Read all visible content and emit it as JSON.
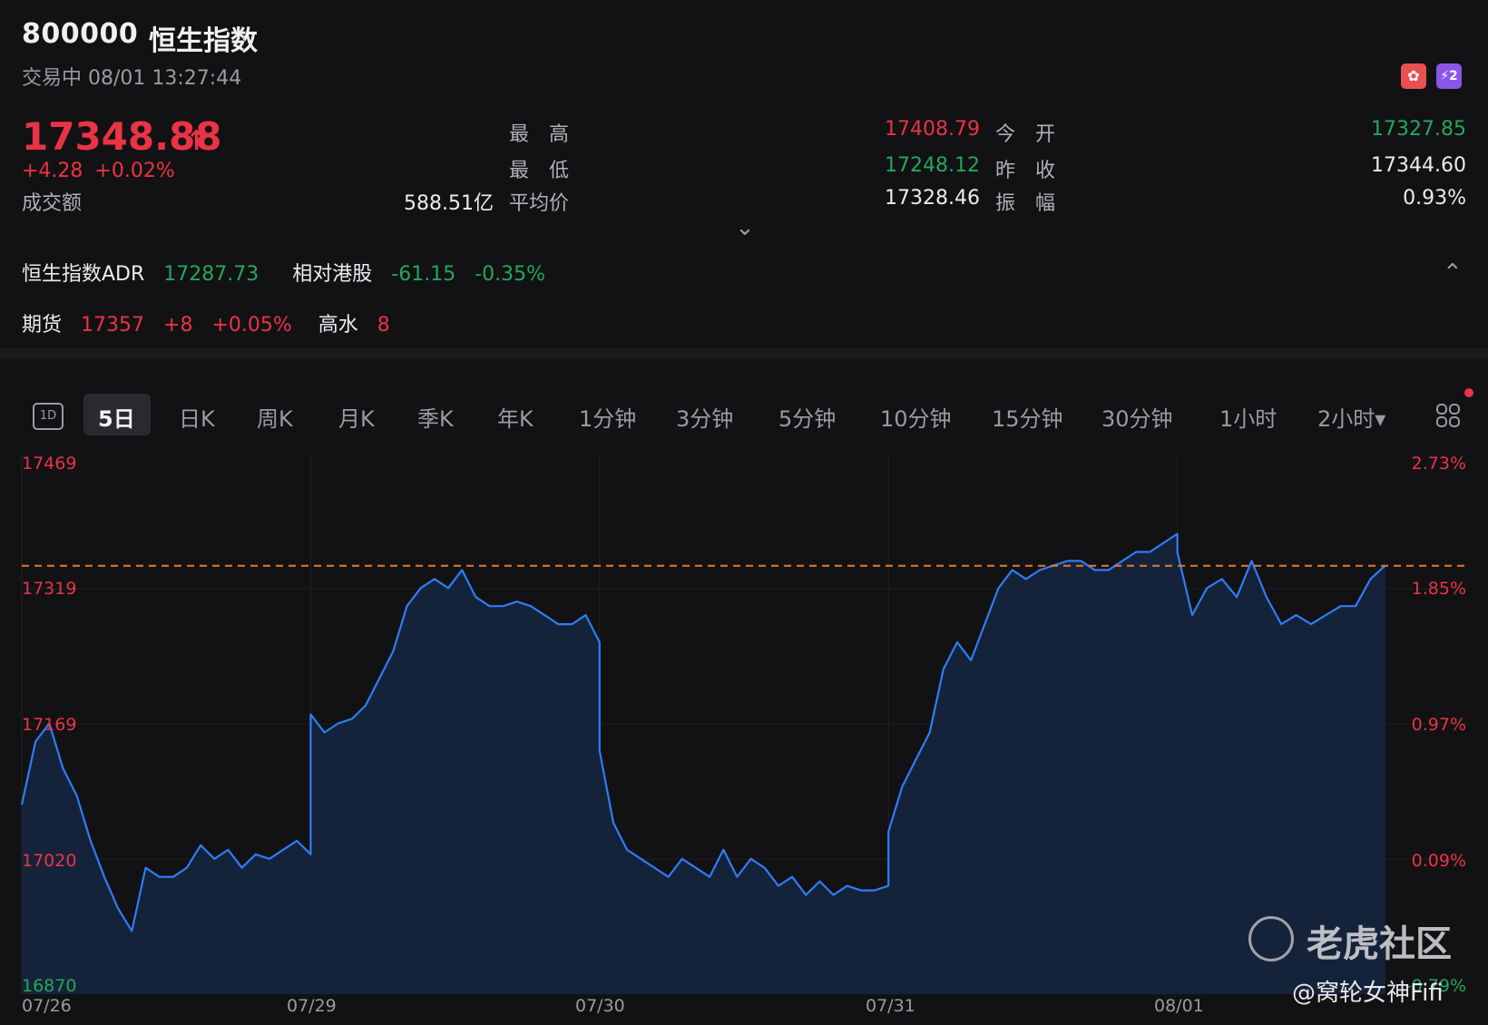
{
  "header": {
    "code": "800000",
    "name": "恒生指数",
    "status": "交易中 08/01 13:27:44",
    "badge_hk": "✿",
    "badge_l2": "⚡2"
  },
  "quote": {
    "price": "17348.88",
    "arrow": "↑",
    "change": "+4.28",
    "change_pct": "+0.02%",
    "turnover_label": "成交额",
    "turnover": "588.51亿",
    "high_label": "最　高",
    "high": "17408.79",
    "low_label": "最　低",
    "low": "17248.12",
    "avg_label": "平均价",
    "avg": "17328.46",
    "open_label": "今　开",
    "open": "17327.85",
    "prev_close_label": "昨　收",
    "prev_close": "17344.60",
    "amplitude_label": "振　幅",
    "amplitude": "0.93%",
    "expand_icon": "⌄"
  },
  "adr": {
    "label": "恒生指数ADR",
    "value": "17287.73",
    "rel_label": "相对港股",
    "rel_change": "-61.15",
    "rel_pct": "-0.35%",
    "collapse_icon": "⌃"
  },
  "futures": {
    "label": "期货",
    "value": "17357",
    "change": "+8",
    "pct": "+0.05%",
    "premium_label": "高水",
    "premium": "8"
  },
  "tabs": [
    {
      "label": "5日"
    },
    {
      "label": "日K"
    },
    {
      "label": "周K"
    },
    {
      "label": "月K"
    },
    {
      "label": "季K"
    },
    {
      "label": "年K"
    },
    {
      "label": "1分钟"
    },
    {
      "label": "3分钟"
    },
    {
      "label": "5分钟"
    },
    {
      "label": "10分钟"
    },
    {
      "label": "15分钟"
    },
    {
      "label": "30分钟"
    },
    {
      "label": "1小时"
    },
    {
      "label": "2小时▾"
    }
  ],
  "tab_1d": "1D",
  "colors": {
    "up": "#ea3345",
    "down": "#26a65b",
    "line": "#2f7cf6",
    "ref_line": "#e57a2a"
  },
  "chart_data": {
    "type": "area",
    "y_left_labels": [
      "17469",
      "17319",
      "17169",
      "17020",
      "16870"
    ],
    "y_right_labels": [
      "2.73%",
      "1.85%",
      "0.97%",
      "0.09%",
      "-0.79%"
    ],
    "x_labels": [
      "07/26",
      "07/29",
      "07/30",
      "07/31",
      "08/01"
    ],
    "ylim": [
      16870,
      17469
    ],
    "reference_value": 17344.6,
    "series": [
      {
        "values": [
          [
            17080,
            17150,
            17170,
            17120,
            17090,
            17040,
            17000,
            16965,
            16940,
            17010,
            17000,
            17000,
            17010,
            17035,
            17020,
            17030,
            17010,
            17025,
            17020,
            17030,
            17040,
            17025
          ],
          [
            17180,
            17160,
            17170,
            17175,
            17190,
            17220,
            17250,
            17300,
            17320,
            17330,
            17320,
            17340,
            17310,
            17300,
            17300,
            17305,
            17300,
            17290,
            17280,
            17280,
            17290,
            17260
          ],
          [
            17140,
            17060,
            17030,
            17020,
            17010,
            17000,
            17020,
            17010,
            17000,
            17030,
            17000,
            17020,
            17010,
            16990,
            17000,
            16980,
            16995,
            16980,
            16990,
            16985,
            16985,
            16990
          ],
          [
            17050,
            17100,
            17130,
            17160,
            17230,
            17260,
            17240,
            17280,
            17320,
            17340,
            17330,
            17340,
            17345,
            17350,
            17350,
            17340,
            17340,
            17350,
            17360,
            17360,
            17370,
            17380
          ],
          [
            17360,
            17290,
            17320,
            17330,
            17310,
            17350,
            17310,
            17280,
            17290,
            17280,
            17290,
            17300,
            17300,
            17330,
            17345
          ]
        ]
      }
    ]
  },
  "watermark": {
    "brand": "老虎社区",
    "user": "@窝轮女神Fifi"
  }
}
